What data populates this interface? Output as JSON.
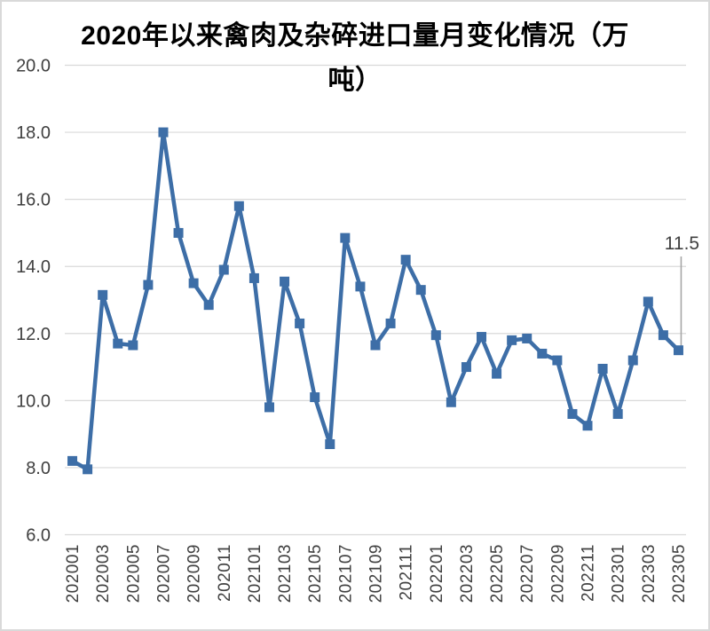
{
  "chart_data": {
    "type": "line",
    "title": "2020年以来禽肉及杂碎进口量月变化情况（万吨）",
    "title_line1": "2020年以来禽肉及杂碎进口量月变化情况（万",
    "title_line2": "吨）",
    "xlabel": "",
    "ylabel": "",
    "ylim": [
      6.0,
      20.0
    ],
    "yticks": [
      20.0,
      18.0,
      16.0,
      14.0,
      12.0,
      10.0,
      8.0,
      6.0
    ],
    "ytick_labels": [
      "20.0",
      "18.0",
      "16.0",
      "14.0",
      "12.0",
      "10.0",
      "8.0",
      "6.0"
    ],
    "x_tick_every": 2,
    "grid": "horizontal",
    "legend": "none",
    "x": [
      "202001",
      "202002",
      "202003",
      "202004",
      "202005",
      "202006",
      "202007",
      "202008",
      "202009",
      "202010",
      "202011",
      "202012",
      "202101",
      "202102",
      "202103",
      "202104",
      "202105",
      "202106",
      "202107",
      "202108",
      "202109",
      "202110",
      "202111",
      "202112",
      "202201",
      "202202",
      "202203",
      "202204",
      "202205",
      "202206",
      "202207",
      "202208",
      "202209",
      "202210",
      "202211",
      "202212",
      "202301",
      "202302",
      "202303",
      "202304",
      "202305"
    ],
    "series": [
      {
        "name": "禽肉及杂碎进口量",
        "values": [
          8.2,
          7.95,
          13.15,
          11.7,
          11.65,
          13.45,
          18.0,
          15.0,
          13.5,
          12.85,
          13.9,
          15.8,
          13.65,
          9.8,
          13.55,
          12.3,
          10.1,
          8.7,
          14.85,
          13.4,
          11.65,
          12.3,
          14.2,
          13.3,
          11.95,
          9.95,
          11.0,
          11.9,
          10.8,
          11.8,
          11.85,
          11.4,
          11.2,
          9.6,
          9.25,
          10.95,
          9.6,
          11.2,
          12.95,
          11.95,
          11.5
        ]
      }
    ],
    "annotation": {
      "text": "11.5",
      "x": "202305",
      "value": 11.5
    },
    "colors": {
      "line": "#3d6ea7",
      "marker": "#3d6ea7",
      "grid": "#d9d9d9",
      "tick_label": "#404040",
      "annotation_text": "#404040",
      "leader_line": "#a6a6a6",
      "title": "#000000",
      "frame_border": "#d9d9d9",
      "background": "#ffffff"
    }
  }
}
